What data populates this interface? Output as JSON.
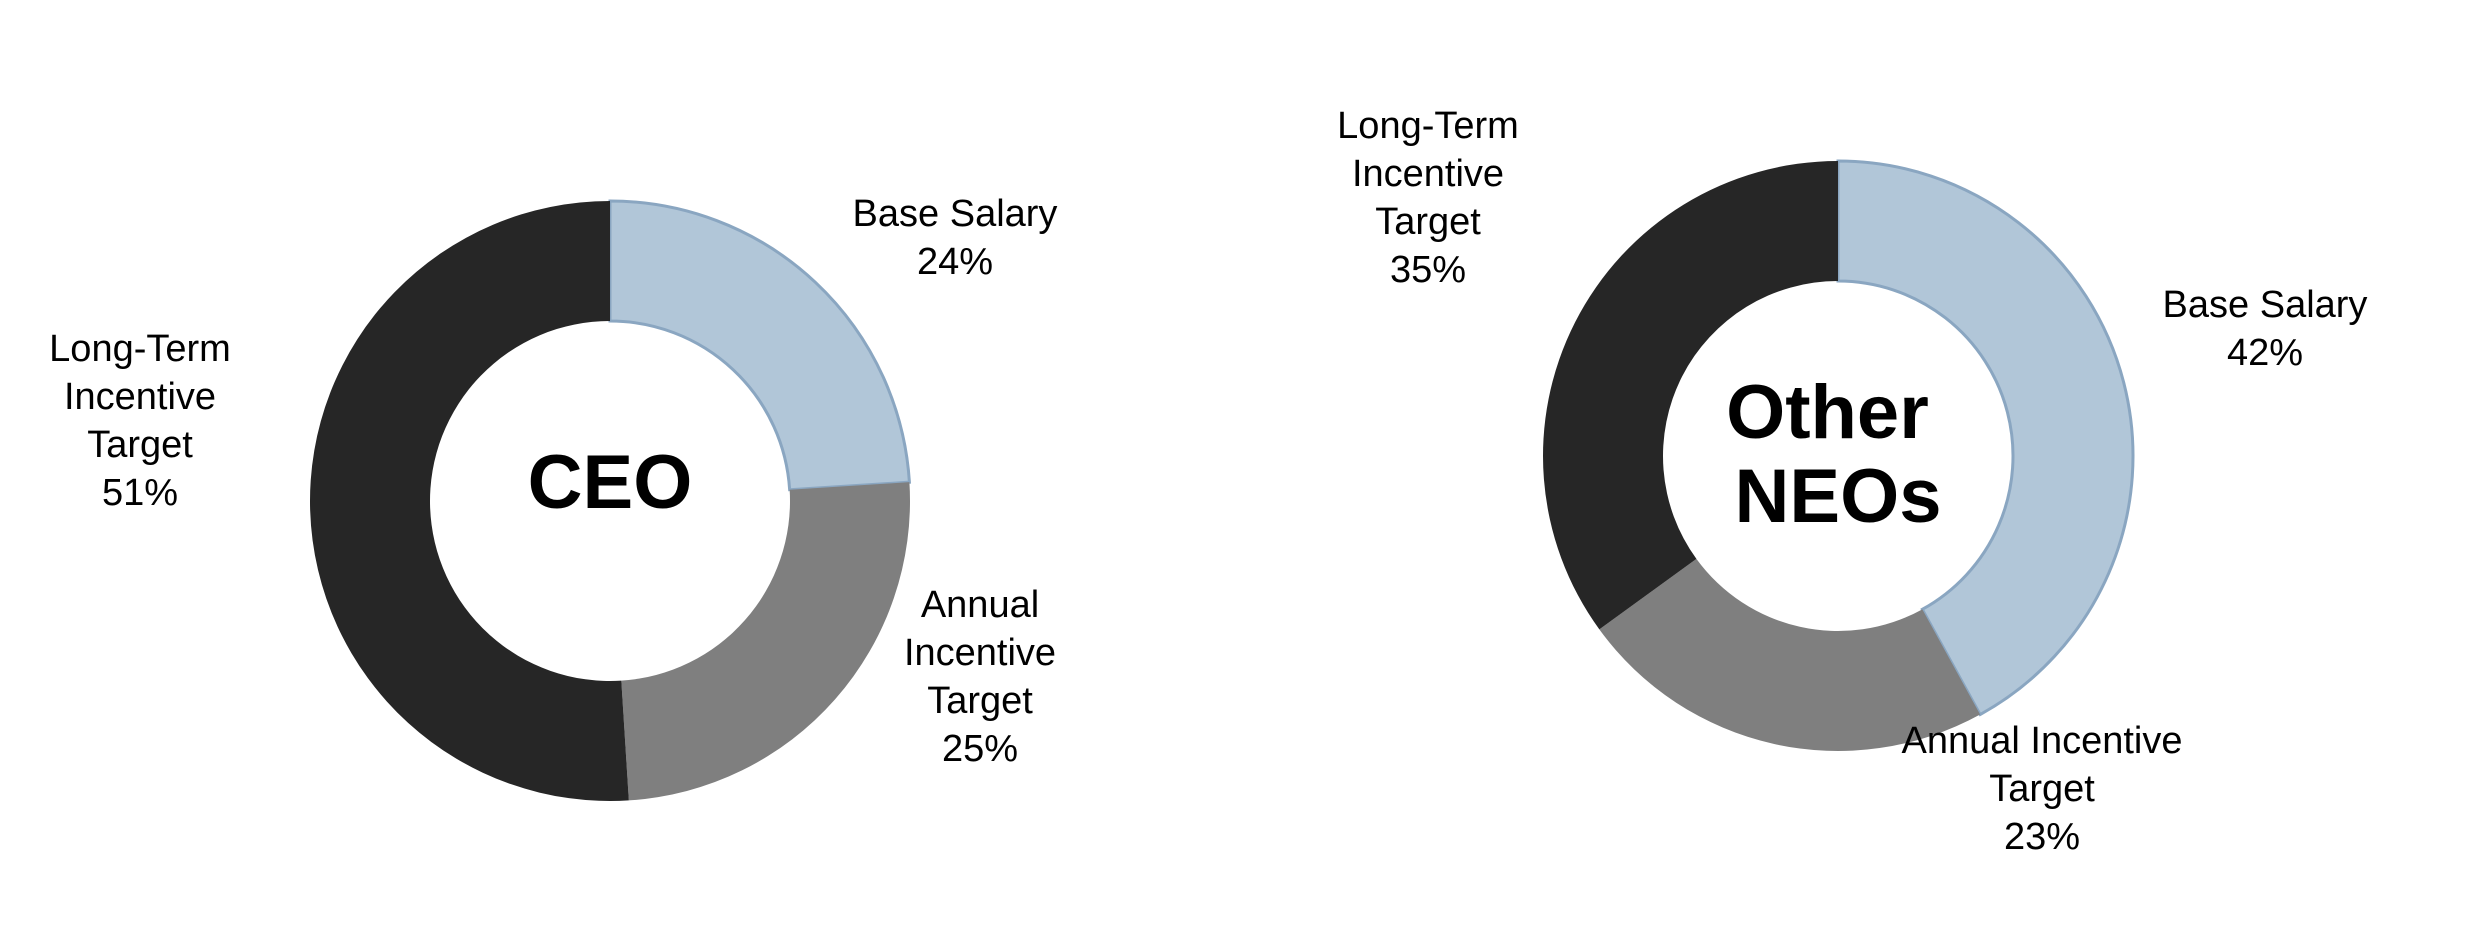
{
  "chart_data": [
    {
      "type": "pie",
      "title": "CEO",
      "slices": [
        {
          "label": [
            "Base Salary"
          ],
          "value": 24,
          "display": "24%",
          "color": "#b1c6d8"
        },
        {
          "label": [
            "Annual",
            "Incentive",
            "Target"
          ],
          "value": 25,
          "display": "25%",
          "color": "#7f7f7f"
        },
        {
          "label": [
            "Long-Term",
            "Incentive",
            "Target"
          ],
          "value": 51,
          "display": "51%",
          "color": "#262626"
        }
      ]
    },
    {
      "type": "pie",
      "title": "Other NEOs",
      "title_lines": [
        "Other",
        "NEOs"
      ],
      "slices": [
        {
          "label": [
            "Base Salary"
          ],
          "value": 42,
          "display": "42%",
          "color": "#b1c6d8"
        },
        {
          "label": [
            "Annual Incentive",
            "Target"
          ],
          "value": 23,
          "display": "23%",
          "color": "#7f7f7f"
        },
        {
          "label": [
            "Long-Term",
            "Incentive",
            "Target"
          ],
          "value": 35,
          "display": "35%",
          "color": "#262626"
        }
      ]
    }
  ],
  "colors": {
    "base_salary_outline": "#8aa6c1",
    "background": "#ffffff"
  }
}
